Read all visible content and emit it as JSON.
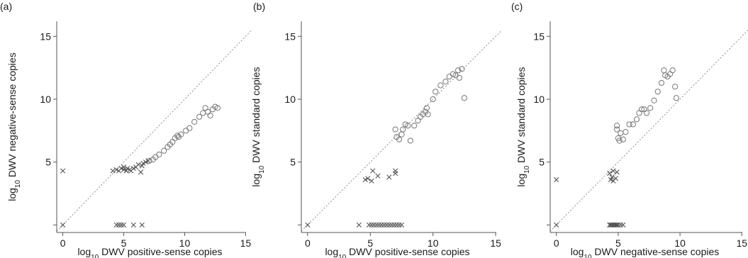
{
  "chart_data": [
    {
      "type": "scatter",
      "panel_label": "(a)",
      "xlabel": "log10 DWV positive-sense copies",
      "ylabel": "log10 DWV negative-sense copies",
      "xlim": [
        -0.5,
        15.5
      ],
      "ylim": [
        -0.6,
        16.2
      ],
      "xticks": [
        0,
        5,
        10,
        15
      ],
      "yticks": [
        5,
        10,
        15
      ],
      "reference_line": "y = x",
      "series": [
        {
          "marker": "circle",
          "points": [
            [
              7.1,
              5.1
            ],
            [
              7.4,
              5.2
            ],
            [
              7.6,
              5.4
            ],
            [
              7.9,
              5.6
            ],
            [
              8.3,
              5.9
            ],
            [
              8.6,
              6.2
            ],
            [
              8.8,
              6.4
            ],
            [
              9.0,
              6.6
            ],
            [
              9.2,
              6.9
            ],
            [
              9.4,
              7.1
            ],
            [
              9.5,
              7.0
            ],
            [
              9.7,
              7.2
            ],
            [
              10.1,
              7.5
            ],
            [
              10.4,
              7.7
            ],
            [
              10.8,
              8.2
            ],
            [
              11.2,
              8.6
            ],
            [
              11.5,
              8.9
            ],
            [
              11.7,
              9.3
            ],
            [
              11.9,
              9.0
            ],
            [
              12.1,
              8.7
            ],
            [
              12.3,
              9.2
            ],
            [
              12.5,
              9.4
            ],
            [
              12.7,
              9.3
            ]
          ]
        },
        {
          "marker": "cross",
          "points": [
            [
              0.0,
              4.3
            ],
            [
              0.0,
              0.0
            ],
            [
              4.1,
              4.3
            ],
            [
              4.4,
              4.4
            ],
            [
              4.6,
              4.3
            ],
            [
              4.8,
              4.5
            ],
            [
              5.0,
              4.4
            ],
            [
              5.0,
              4.6
            ],
            [
              5.2,
              4.3
            ],
            [
              5.3,
              4.5
            ],
            [
              5.5,
              4.4
            ],
            [
              5.6,
              4.3
            ],
            [
              5.8,
              4.5
            ],
            [
              6.0,
              4.6
            ],
            [
              6.2,
              4.8
            ],
            [
              6.4,
              4.2
            ],
            [
              6.5,
              4.7
            ],
            [
              6.6,
              4.9
            ],
            [
              6.8,
              5.0
            ],
            [
              7.0,
              5.1
            ],
            [
              4.4,
              0.0
            ],
            [
              4.6,
              0.0
            ],
            [
              4.8,
              0.0
            ],
            [
              5.0,
              0.0
            ],
            [
              5.8,
              0.0
            ],
            [
              6.5,
              0.0
            ]
          ]
        }
      ]
    },
    {
      "type": "scatter",
      "panel_label": "(b)",
      "xlabel": "log10 DWV positive-sense copies",
      "ylabel": "log10 DWV standard copies",
      "xlim": [
        -0.5,
        15.5
      ],
      "ylim": [
        -0.6,
        16.2
      ],
      "xticks": [
        0,
        5,
        10,
        15
      ],
      "yticks": [
        5,
        10,
        15
      ],
      "reference_line": "y = x",
      "series": [
        {
          "marker": "circle",
          "points": [
            [
              7.0,
              7.6
            ],
            [
              7.1,
              7.0
            ],
            [
              7.3,
              6.8
            ],
            [
              7.5,
              7.2
            ],
            [
              7.6,
              7.6
            ],
            [
              7.8,
              8.0
            ],
            [
              8.0,
              7.9
            ],
            [
              8.2,
              6.7
            ],
            [
              8.5,
              7.9
            ],
            [
              8.8,
              8.3
            ],
            [
              9.0,
              8.6
            ],
            [
              9.2,
              8.8
            ],
            [
              9.4,
              9.0
            ],
            [
              9.5,
              9.3
            ],
            [
              9.6,
              8.8
            ],
            [
              10.0,
              10.0
            ],
            [
              10.2,
              10.6
            ],
            [
              10.6,
              11.1
            ],
            [
              11.0,
              11.4
            ],
            [
              11.3,
              11.8
            ],
            [
              11.6,
              12.0
            ],
            [
              11.8,
              11.9
            ],
            [
              12.0,
              12.3
            ],
            [
              12.1,
              11.7
            ],
            [
              12.3,
              12.4
            ],
            [
              12.5,
              10.1
            ]
          ]
        },
        {
          "marker": "cross",
          "points": [
            [
              0.0,
              0.0
            ],
            [
              4.1,
              0.0
            ],
            [
              4.6,
              3.6
            ],
            [
              4.8,
              3.7
            ],
            [
              5.1,
              3.5
            ],
            [
              5.2,
              4.3
            ],
            [
              5.6,
              3.9
            ],
            [
              6.5,
              3.8
            ],
            [
              7.0,
              4.1
            ],
            [
              7.0,
              4.3
            ],
            [
              4.9,
              0.0
            ],
            [
              5.1,
              0.0
            ],
            [
              5.3,
              0.0
            ],
            [
              5.5,
              0.0
            ],
            [
              5.7,
              0.0
            ],
            [
              5.9,
              0.0
            ],
            [
              6.1,
              0.0
            ],
            [
              6.3,
              0.0
            ],
            [
              6.5,
              0.0
            ],
            [
              6.7,
              0.0
            ],
            [
              6.9,
              0.0
            ],
            [
              7.1,
              0.0
            ],
            [
              7.3,
              0.0
            ],
            [
              7.5,
              0.0
            ]
          ]
        }
      ]
    },
    {
      "type": "scatter",
      "panel_label": "(c)",
      "xlabel": "log10 DWV negative-sense copies",
      "ylabel": "log10 DWV standard copies",
      "xlim": [
        -0.5,
        15.5
      ],
      "ylim": [
        -0.6,
        16.2
      ],
      "xticks": [
        0,
        5,
        10,
        15
      ],
      "yticks": [
        5,
        10,
        15
      ],
      "reference_line": "y = x",
      "series": [
        {
          "marker": "circle",
          "points": [
            [
              4.9,
              7.6
            ],
            [
              4.9,
              7.9
            ],
            [
              5.0,
              6.9
            ],
            [
              5.1,
              6.7
            ],
            [
              5.2,
              7.3
            ],
            [
              5.4,
              6.8
            ],
            [
              5.6,
              7.4
            ],
            [
              5.9,
              8.0
            ],
            [
              6.2,
              8.0
            ],
            [
              6.5,
              8.4
            ],
            [
              6.7,
              8.9
            ],
            [
              6.9,
              9.2
            ],
            [
              7.1,
              9.2
            ],
            [
              7.3,
              8.9
            ],
            [
              7.6,
              9.3
            ],
            [
              7.9,
              9.9
            ],
            [
              8.2,
              10.6
            ],
            [
              8.5,
              11.3
            ],
            [
              8.7,
              12.3
            ],
            [
              8.8,
              11.9
            ],
            [
              9.0,
              11.8
            ],
            [
              9.2,
              12.0
            ],
            [
              9.4,
              12.3
            ],
            [
              9.6,
              11.0
            ],
            [
              9.7,
              10.1
            ]
          ]
        },
        {
          "marker": "cross",
          "points": [
            [
              0.0,
              3.6
            ],
            [
              0.0,
              0.0
            ],
            [
              4.3,
              4.1
            ],
            [
              4.4,
              3.6
            ],
            [
              4.5,
              3.8
            ],
            [
              4.6,
              3.5
            ],
            [
              4.6,
              4.3
            ],
            [
              4.8,
              3.7
            ],
            [
              4.9,
              4.2
            ],
            [
              4.3,
              0.0
            ],
            [
              4.4,
              0.0
            ],
            [
              4.5,
              0.0
            ],
            [
              4.6,
              0.0
            ],
            [
              4.7,
              0.0
            ],
            [
              4.8,
              0.0
            ],
            [
              4.9,
              0.0
            ],
            [
              5.0,
              0.0
            ],
            [
              5.2,
              0.0
            ],
            [
              5.4,
              0.0
            ]
          ]
        }
      ]
    }
  ]
}
